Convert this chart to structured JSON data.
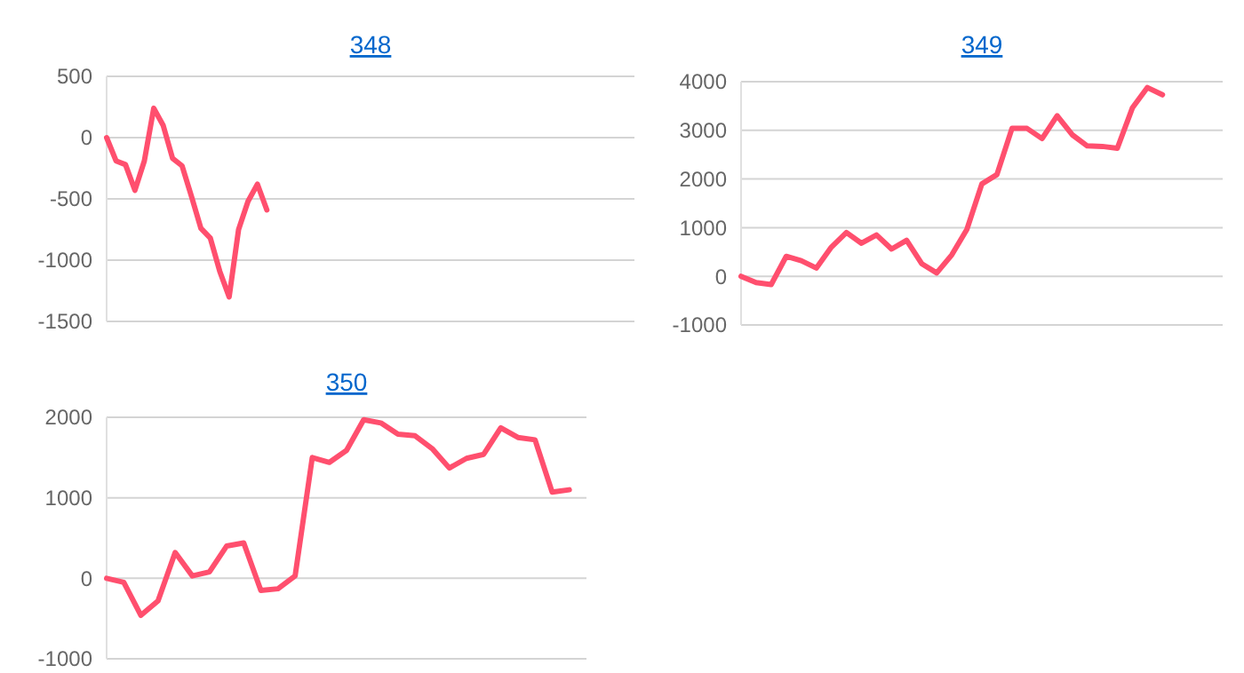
{
  "chart_data": [
    {
      "type": "line",
      "title": "348",
      "categories": [
        null,
        null,
        null,
        null,
        null,
        null,
        null,
        null,
        null,
        null,
        null,
        null,
        null,
        null,
        null,
        null,
        null,
        null,
        null,
        null,
        null,
        null,
        null,
        null,
        null,
        null,
        null,
        null,
        null,
        null,
        null,
        null,
        null,
        null,
        null,
        null,
        null,
        null,
        null,
        null,
        null,
        null,
        null,
        null,
        null,
        null,
        null,
        null,
        null,
        null,
        null,
        null,
        null,
        null,
        null,
        null,
        null
      ],
      "series": [
        {
          "color": "#ff4f6e",
          "values": [
            0,
            -190,
            -220,
            -430,
            -190,
            240,
            100,
            -170,
            -230,
            -480,
            -740,
            -820,
            -1090,
            -1300,
            -750,
            -520,
            -380,
            -590,
            null,
            null,
            null,
            null,
            null,
            null,
            null,
            null,
            null,
            null,
            null,
            null,
            null,
            null,
            null,
            null,
            null,
            null,
            null,
            null,
            null,
            null,
            null,
            null,
            null,
            null,
            null,
            null,
            null,
            null,
            null,
            null,
            null,
            null,
            null,
            null,
            null,
            null,
            null
          ]
        }
      ],
      "ylim": [
        -1500,
        500
      ],
      "yticks": [
        -1500,
        -1000,
        -500,
        0,
        500
      ],
      "grid": "y",
      "marker": "none",
      "line_style": "solid"
    },
    {
      "type": "line",
      "title": "349",
      "categories": [
        null,
        null,
        null,
        null,
        null,
        null,
        null,
        null,
        null,
        null,
        null,
        null,
        null,
        null,
        null,
        null,
        null,
        null,
        null,
        null,
        null,
        null,
        null,
        null,
        null,
        null,
        null,
        null,
        null,
        null,
        null,
        null,
        null
      ],
      "series": [
        {
          "color": "#ff4f6e",
          "values": [
            0,
            -130,
            -170,
            410,
            320,
            170,
            600,
            900,
            680,
            850,
            560,
            740,
            260,
            70,
            440,
            960,
            1900,
            2090,
            3040,
            3040,
            2830,
            3300,
            2910,
            2680,
            2670,
            2630,
            3460,
            3880,
            3730,
            null,
            null,
            null,
            null
          ]
        }
      ],
      "ylim": [
        -1000,
        4000
      ],
      "yticks": [
        -1000,
        0,
        1000,
        2000,
        3000,
        4000
      ],
      "grid": "y",
      "marker": "none",
      "line_style": "solid"
    },
    {
      "type": "line",
      "title": "350",
      "categories": [
        null,
        null,
        null,
        null,
        null,
        null,
        null,
        null,
        null,
        null,
        null,
        null,
        null,
        null,
        null,
        null,
        null,
        null,
        null,
        null,
        null,
        null,
        null,
        null,
        null,
        null,
        null,
        null,
        null
      ],
      "series": [
        {
          "color": "#ff4f6e",
          "values": [
            0,
            -50,
            -460,
            -280,
            320,
            30,
            80,
            400,
            440,
            -150,
            -130,
            30,
            1500,
            1440,
            1590,
            1970,
            1930,
            1790,
            1770,
            1610,
            1370,
            1490,
            1540,
            1870,
            1750,
            1720,
            1070,
            1100,
            null
          ]
        }
      ],
      "ylim": [
        -1000,
        2000
      ],
      "yticks": [
        -1000,
        0,
        1000,
        2000
      ],
      "grid": "y",
      "marker": "none",
      "line_style": "solid"
    }
  ]
}
